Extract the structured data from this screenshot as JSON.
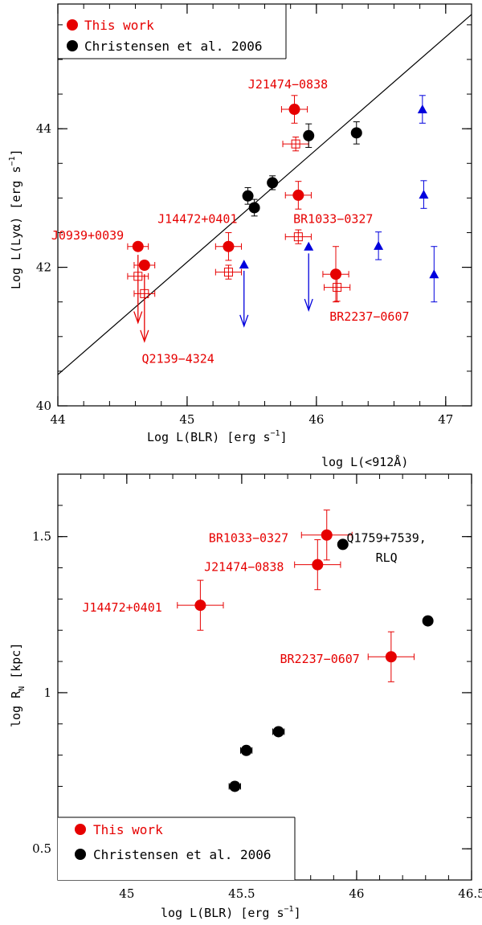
{
  "colors": {
    "red": "#e60000",
    "black": "#000000",
    "blue": "#0000dd"
  },
  "chart_data": [
    {
      "type": "scatter",
      "xlabel": "Log L(BLR) [erg s",
      "xlabel_sup": "−1",
      "xlabel_end": "]",
      "xlabel2": "log L(<912Å)",
      "ylabel": "Log L(Lyα) [erg s",
      "ylabel_sup": "−1",
      "ylabel_end": "]",
      "xlim": [
        44,
        47.2
      ],
      "ylim": [
        40,
        45.8
      ],
      "xticks": [
        {
          "v": 44,
          "label": "44"
        },
        {
          "v": 45,
          "label": "45"
        },
        {
          "v": 46,
          "label": "46"
        },
        {
          "v": 47,
          "label": "47"
        }
      ],
      "yticks": [
        {
          "v": 40,
          "label": "40"
        },
        {
          "v": 42,
          "label": "42"
        },
        {
          "v": 44,
          "label": "44"
        }
      ],
      "legend": [
        {
          "label": "This work",
          "color": "#e60000"
        },
        {
          "label": "Christensen et al. 2006",
          "color": "#000000"
        }
      ],
      "fit_line": [
        [
          44,
          40.45
        ],
        [
          47.2,
          45.65
        ]
      ],
      "series": [
        {
          "name": "This work",
          "marker": "filled-circle",
          "color": "#e60000",
          "points": [
            {
              "x": 44.62,
              "y": 42.3,
              "xerr": 0.08,
              "yerr": 0
            },
            {
              "x": 44.67,
              "y": 42.03,
              "xerr": 0.08,
              "yerr": 0
            },
            {
              "x": 45.32,
              "y": 42.3,
              "xerr": 0.1,
              "yerr": 0.2
            },
            {
              "x": 45.83,
              "y": 44.28,
              "xerr": 0.1,
              "yerr": 0.2
            },
            {
              "x": 45.86,
              "y": 43.04,
              "xerr": 0.1,
              "yerr": 0.2
            },
            {
              "x": 46.15,
              "y": 41.9,
              "xerr": 0.1,
              "yerr": 0.4
            }
          ]
        },
        {
          "name": "This work (open squares)",
          "marker": "open-square",
          "color": "#e60000",
          "points": [
            {
              "x": 44.62,
              "y": 41.87,
              "xerr": 0.08,
              "yerr": 0
            },
            {
              "x": 44.67,
              "y": 41.62,
              "xerr": 0.08,
              "yerr": 0
            },
            {
              "x": 45.32,
              "y": 41.93,
              "xerr": 0.1,
              "yerr": 0.1
            },
            {
              "x": 45.84,
              "y": 43.78,
              "xerr": 0.1,
              "yerr": 0.1
            },
            {
              "x": 45.86,
              "y": 42.44,
              "xerr": 0.1,
              "yerr": 0.1
            },
            {
              "x": 46.16,
              "y": 41.71,
              "xerr": 0.1,
              "yerr": 0.2
            }
          ]
        },
        {
          "name": "Christensen et al. 2006",
          "marker": "filled-circle",
          "color": "#000000",
          "points": [
            {
              "x": 45.47,
              "y": 43.03,
              "yerr": 0.12
            },
            {
              "x": 45.52,
              "y": 42.86,
              "yerr": 0.12
            },
            {
              "x": 45.66,
              "y": 43.22,
              "yerr": 0.1
            },
            {
              "x": 45.94,
              "y": 43.9,
              "yerr": 0.17
            },
            {
              "x": 46.31,
              "y": 43.94,
              "yerr": 0.16
            }
          ]
        },
        {
          "name": "log L(<912Å)",
          "marker": "filled-triangle",
          "color": "#0000dd",
          "points": [
            {
              "x": 46.82,
              "y": 44.28,
              "yerr": 0.2
            },
            {
              "x": 46.83,
              "y": 43.05,
              "yerr": 0.2
            },
            {
              "x": 46.48,
              "y": 42.31,
              "yerr": 0.2
            },
            {
              "x": 46.91,
              "y": 41.9,
              "yerr": 0.4
            },
            {
              "x": 45.44,
              "y": 42.04,
              "yerr": 0
            },
            {
              "x": 45.94,
              "y": 42.3,
              "yerr": 0
            }
          ]
        }
      ],
      "upper_limits": [
        {
          "x": 44.62,
          "y_from": 42.18,
          "y_to": 41.2,
          "color": "#e60000"
        },
        {
          "x": 44.67,
          "y_from": 41.9,
          "y_to": 40.93,
          "color": "#e60000"
        },
        {
          "x": 45.44,
          "y_from": 41.95,
          "y_to": 41.15,
          "color": "#0000dd"
        },
        {
          "x": 45.94,
          "y_from": 42.2,
          "y_to": 41.38,
          "color": "#0000dd"
        }
      ],
      "annotations": [
        {
          "text": "J21474−0838",
          "x": 45.78,
          "y": 44.58,
          "anchor": "middle",
          "color": "#e60000"
        },
        {
          "text": "J14472+0401",
          "x": 45.08,
          "y": 42.64,
          "anchor": "middle",
          "color": "#e60000"
        },
        {
          "text": "J0939+0039",
          "x": 44.23,
          "y": 42.4,
          "anchor": "middle",
          "color": "#e60000"
        },
        {
          "text": "BR1033−0327",
          "x": 46.13,
          "y": 42.64,
          "anchor": "middle",
          "color": "#e60000"
        },
        {
          "text": "BR2237−0607",
          "x": 46.41,
          "y": 41.23,
          "anchor": "middle",
          "color": "#e60000"
        },
        {
          "text": "Q2139−4324",
          "x": 44.93,
          "y": 40.62,
          "anchor": "middle",
          "color": "#e60000"
        }
      ]
    },
    {
      "type": "scatter",
      "xlabel": "log L(BLR) [erg s",
      "xlabel_sup": "−1",
      "xlabel_end": "]",
      "ylabel": "log R",
      "ylabel_sub": "N",
      "ylabel_end": " [kpc]",
      "xlim": [
        44.7,
        46.5
      ],
      "ylim": [
        0.4,
        1.7
      ],
      "xticks": [
        {
          "v": 45,
          "label": "45"
        },
        {
          "v": 45.5,
          "label": "45.5"
        },
        {
          "v": 46,
          "label": "46"
        },
        {
          "v": 46.5,
          "label": "46.5"
        }
      ],
      "yticks": [
        {
          "v": 0.5,
          "label": "0.5"
        },
        {
          "v": 1,
          "label": "1"
        },
        {
          "v": 1.5,
          "label": "1.5"
        }
      ],
      "legend": [
        {
          "label": "This work",
          "color": "#e60000"
        },
        {
          "label": "Christensen et al. 2006",
          "color": "#000000"
        }
      ],
      "series": [
        {
          "name": "This work",
          "marker": "filled-circle",
          "color": "#e60000",
          "points": [
            {
              "x": 45.32,
              "y": 1.28,
              "xerr": 0.1,
              "yerr": 0.08
            },
            {
              "x": 45.83,
              "y": 1.41,
              "xerr": 0.1,
              "yerr": 0.08
            },
            {
              "x": 45.87,
              "y": 1.505,
              "xerr": 0.11,
              "yerr": 0.08
            },
            {
              "x": 46.15,
              "y": 1.115,
              "xerr": 0.1,
              "yerr": 0.08
            }
          ]
        },
        {
          "name": "Christensen et al. 2006",
          "marker": "filled-circle",
          "color": "#000000",
          "points": [
            {
              "x": 45.47,
              "y": 0.7,
              "xerr": 0.025
            },
            {
              "x": 45.52,
              "y": 0.815,
              "xerr": 0.025
            },
            {
              "x": 45.66,
              "y": 0.875,
              "xerr": 0.025
            },
            {
              "x": 45.94,
              "y": 1.475,
              "xerr": 0
            },
            {
              "x": 46.31,
              "y": 1.23,
              "xerr": 0
            }
          ]
        }
      ],
      "annotations": [
        {
          "text": "BR1033−0327",
          "x": 45.53,
          "y": 1.483,
          "anchor": "middle",
          "color": "#e60000"
        },
        {
          "text": "Q1759+7539,",
          "x": 46.13,
          "y": 1.483,
          "anchor": "middle",
          "color": "#000000"
        },
        {
          "text": "RLQ",
          "x": 46.13,
          "y": 1.42,
          "anchor": "middle",
          "color": "#000000"
        },
        {
          "text": "J21474−0838",
          "x": 45.51,
          "y": 1.39,
          "anchor": "middle",
          "color": "#e60000"
        },
        {
          "text": "J14472+0401",
          "x": 44.98,
          "y": 1.26,
          "anchor": "middle",
          "color": "#e60000"
        },
        {
          "text": "BR2237−0607",
          "x": 45.84,
          "y": 1.095,
          "anchor": "middle",
          "color": "#e60000"
        }
      ]
    }
  ]
}
